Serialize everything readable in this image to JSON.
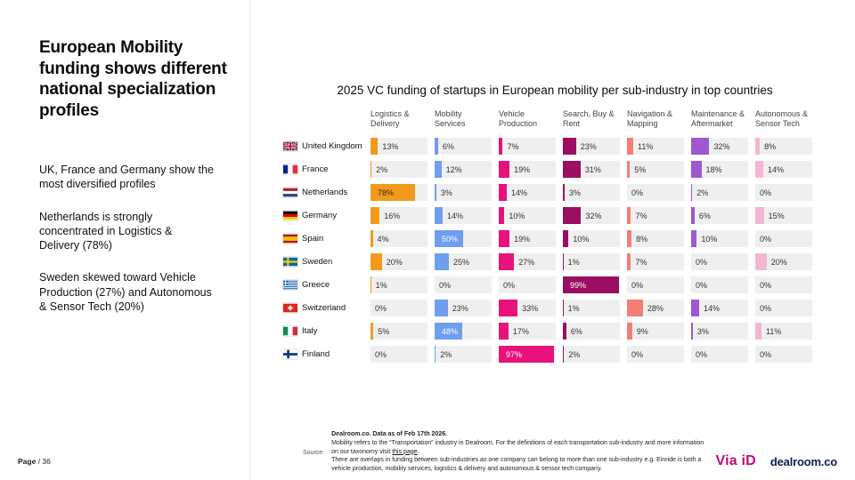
{
  "sidebar": {
    "title": "European Mobility funding shows different national specialization profiles",
    "paragraphs": [
      "UK, France and Germany show the most diversified profiles",
      "Netherlands is strongly concentrated in Logistics & Delivery (78%)",
      "Sweden skewed toward Vehicle Production (27%) and Autonomous & Sensor Tech (20%)"
    ],
    "page_word": "Page",
    "page_number": "/ 36"
  },
  "chart_data": {
    "type": "heatmap",
    "title": "2025 VC funding of startups in European mobility per sub-industry in top countries",
    "unit": "%",
    "xlim": [
      0,
      100
    ],
    "cell_background": "#efefef",
    "columns": [
      {
        "label": "Logistics & Delivery",
        "color": "#F39A1D"
      },
      {
        "label": "Mobility Services",
        "color": "#6D9EEF"
      },
      {
        "label": "Vehicle Production",
        "color": "#E8127D"
      },
      {
        "label": "Search, Buy & Rent",
        "color": "#9B0E63"
      },
      {
        "label": "Navigation & Mapping",
        "color": "#F47E76"
      },
      {
        "label": "Maintenance & Aftermarket",
        "color": "#9C59D1"
      },
      {
        "label": "Autonomous & Sensor Tech",
        "color": "#F4B6D2"
      }
    ],
    "rows": [
      {
        "country": "United Kingdom",
        "flag": "gb",
        "values": [
          13,
          6,
          7,
          23,
          11,
          32,
          8
        ]
      },
      {
        "country": "France",
        "flag": "fr",
        "values": [
          2,
          12,
          19,
          31,
          5,
          18,
          14
        ]
      },
      {
        "country": "Netherlands",
        "flag": "nl",
        "values": [
          78,
          3,
          14,
          3,
          0,
          2,
          0
        ]
      },
      {
        "country": "Germany",
        "flag": "de",
        "values": [
          16,
          14,
          10,
          32,
          7,
          6,
          15
        ]
      },
      {
        "country": "Spain",
        "flag": "es",
        "values": [
          4,
          50,
          19,
          10,
          8,
          10,
          0
        ]
      },
      {
        "country": "Sweden",
        "flag": "se",
        "values": [
          20,
          25,
          27,
          1,
          7,
          0,
          20
        ]
      },
      {
        "country": "Greece",
        "flag": "gr",
        "values": [
          1,
          0,
          0,
          99,
          0,
          0,
          0
        ]
      },
      {
        "country": "Switzerland",
        "flag": "ch",
        "values": [
          0,
          23,
          33,
          1,
          28,
          14,
          0
        ]
      },
      {
        "country": "Italy",
        "flag": "it",
        "values": [
          5,
          48,
          17,
          6,
          9,
          3,
          11
        ]
      },
      {
        "country": "Finland",
        "flag": "fi",
        "values": [
          0,
          2,
          97,
          2,
          0,
          0,
          0
        ]
      }
    ]
  },
  "footer": {
    "source_label": "Source:",
    "line1": "Dealroom.co. Data as of Feb 17th 2026.",
    "line2_pre": "Mobility refers to the “Transportation” industry in Dealroom. For the definitions of each transportation sub-industry and more information on our taxonomy visit ",
    "line2_link": "this page",
    "line2_post": ".",
    "line3": "There are overlaps in funding between sub-industries as one company can belong to more than one sub-industry e.g. Einride is both a vehicle production, mobility services, logistics & delivery and autonomous & sensor tech company."
  },
  "logos": {
    "viaid": "Via iD",
    "dealroom": "dealroom.co"
  }
}
